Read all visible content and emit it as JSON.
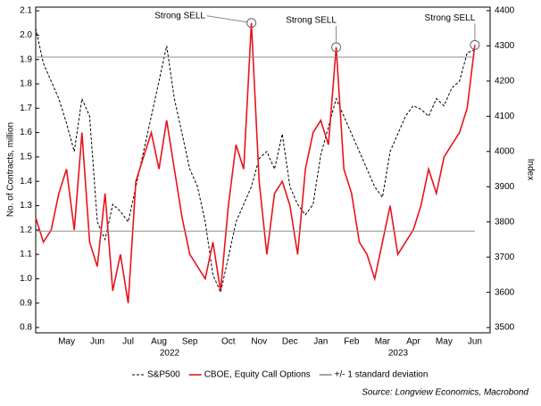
{
  "chart_data": {
    "type": "line",
    "y_label": "No. of Contracts, million",
    "y2_label": "Index",
    "source": "Source: Longview Economics, Macrobond",
    "year_labels": [
      "2022",
      "2023"
    ],
    "categories": [
      null,
      null,
      null,
      null,
      "May",
      null,
      null,
      null,
      "Jun",
      null,
      null,
      null,
      "Jul",
      null,
      null,
      null,
      "Aug",
      null,
      null,
      null,
      "Sep",
      null,
      null,
      null,
      null,
      "Oct",
      null,
      null,
      null,
      "Nov",
      null,
      null,
      null,
      "Dec",
      null,
      null,
      null,
      "Jan",
      null,
      null,
      null,
      "Feb",
      null,
      null,
      null,
      "Mar",
      null,
      null,
      null,
      "Apr",
      null,
      null,
      null,
      "May",
      null,
      null,
      null,
      "Jun"
    ],
    "ylim": [
      0.778,
      2.115
    ],
    "yticks": [
      0.8,
      0.9,
      {
        "value": 1.0,
        "label": "1.0"
      },
      1.1,
      1.2,
      1.3,
      1.4,
      1.5,
      1.6,
      1.7,
      1.8,
      1.9,
      {
        "value": 2.0,
        "label": "2.0"
      },
      2.1
    ],
    "y2lim": [
      3485,
      4410
    ],
    "y2ticks": [
      3500,
      3600,
      3700,
      3800,
      3900,
      4000,
      4100,
      4200,
      4300,
      4400
    ],
    "series": [
      {
        "name": "S&P500",
        "color": "#000000",
        "dash": true,
        "axis": "y2",
        "values": [
          4350,
          4250,
          4200,
          4150,
          4080,
          4000,
          4150,
          4100,
          3800,
          3750,
          3850,
          3830,
          3800,
          3900,
          4000,
          4100,
          4200,
          4300,
          4150,
          4050,
          3950,
          3900,
          3800,
          3650,
          3600,
          3700,
          3800,
          3850,
          3900,
          3980,
          4000,
          3950,
          4050,
          3900,
          3850,
          3820,
          3850,
          3990,
          4070,
          4150,
          4100,
          4050,
          4000,
          3950,
          3900,
          3870,
          4000,
          4050,
          4100,
          4130,
          4120,
          4100,
          4150,
          4130,
          4180,
          4200,
          4280,
          4290
        ]
      },
      {
        "name": "CBOE, Equity Call Options",
        "color": "#e8141b",
        "values": [
          1.25,
          1.15,
          1.2,
          1.35,
          1.45,
          1.2,
          1.6,
          1.15,
          1.05,
          1.35,
          0.95,
          1.1,
          0.9,
          1.4,
          1.5,
          1.6,
          1.45,
          1.65,
          1.45,
          1.25,
          1.1,
          1.05,
          1.0,
          1.15,
          0.95,
          1.3,
          1.55,
          1.45,
          2.05,
          1.4,
          1.1,
          1.35,
          1.4,
          1.3,
          1.1,
          1.45,
          1.6,
          1.65,
          1.55,
          1.95,
          1.45,
          1.35,
          1.15,
          1.1,
          1.0,
          1.15,
          1.3,
          1.1,
          1.15,
          1.2,
          1.3,
          1.45,
          1.35,
          1.5,
          1.55,
          1.6,
          1.7,
          1.96
        ]
      },
      {
        "name": "+/- 1 standard deviation",
        "color": "#8c8c8c",
        "levels": [
          1.195,
          1.91
        ]
      }
    ],
    "annotations": [
      {
        "text": "Strong SELL"
      },
      {
        "text": "Strong SELL"
      },
      {
        "text": "Strong SELL"
      }
    ]
  }
}
